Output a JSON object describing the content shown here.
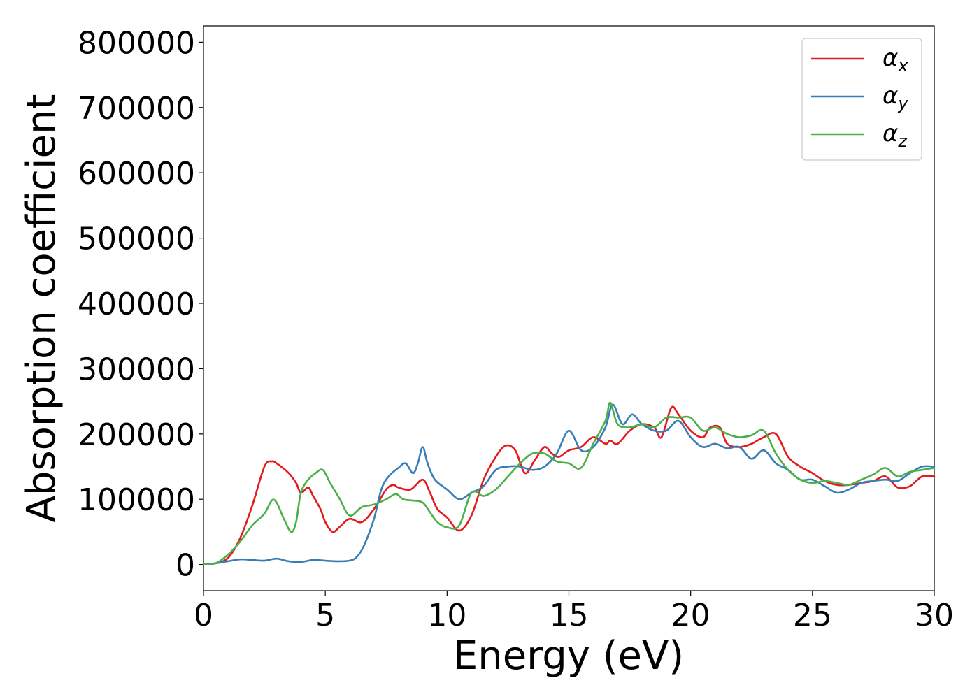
{
  "chart_data": {
    "type": "line",
    "title": "",
    "xlabel": "Energy (eV)",
    "ylabel": "Absorption coefficient",
    "xlim": [
      0,
      30
    ],
    "ylim": [
      -40000,
      825000
    ],
    "xticks": [
      0,
      5,
      10,
      15,
      20,
      25,
      30
    ],
    "xtick_labels": [
      "0",
      "5",
      "10",
      "15",
      "20",
      "25",
      "30"
    ],
    "yticks": [
      0,
      100000,
      200000,
      300000,
      400000,
      500000,
      600000,
      700000,
      800000
    ],
    "ytick_labels": [
      "0",
      "100000",
      "200000",
      "300000",
      "400000",
      "500000",
      "600000",
      "700000",
      "800000"
    ],
    "grid": false,
    "legend_position": "top-right",
    "series": [
      {
        "name": "α_x",
        "legend_base": "α",
        "legend_sub": "x",
        "color": "#e41a1c",
        "x": [
          0,
          0.5,
          1.0,
          1.5,
          2.0,
          2.5,
          2.8,
          3.0,
          3.5,
          3.8,
          4.0,
          4.3,
          4.5,
          4.8,
          5.0,
          5.3,
          5.6,
          6.0,
          6.5,
          7.0,
          7.5,
          7.8,
          8.0,
          8.5,
          9.0,
          9.3,
          9.6,
          10.0,
          10.5,
          11.0,
          11.5,
          12.0,
          12.4,
          12.8,
          13.2,
          13.6,
          14.0,
          14.3,
          14.6,
          15.0,
          15.5,
          16.0,
          16.5,
          16.7,
          17.0,
          17.5,
          18.0,
          18.5,
          18.8,
          19.2,
          19.5,
          20.0,
          20.5,
          20.8,
          21.2,
          21.5,
          22.0,
          22.5,
          23.0,
          23.5,
          24.0,
          24.5,
          25.0,
          25.5,
          26.0,
          26.5,
          27.0,
          27.5,
          28.0,
          28.5,
          29.0,
          29.5,
          30.0
        ],
        "y": [
          0,
          2000,
          10000,
          40000,
          90000,
          150000,
          158000,
          155000,
          140000,
          125000,
          110000,
          118000,
          105000,
          85000,
          65000,
          50000,
          58000,
          70000,
          65000,
          85000,
          115000,
          122000,
          118000,
          115000,
          130000,
          110000,
          85000,
          72000,
          52000,
          75000,
          130000,
          165000,
          182000,
          175000,
          140000,
          160000,
          180000,
          170000,
          165000,
          175000,
          180000,
          195000,
          185000,
          190000,
          185000,
          205000,
          215000,
          210000,
          195000,
          240000,
          230000,
          205000,
          195000,
          210000,
          210000,
          185000,
          180000,
          185000,
          195000,
          200000,
          165000,
          150000,
          140000,
          128000,
          122000,
          122000,
          125000,
          128000,
          135000,
          118000,
          120000,
          135000,
          135000
        ]
      },
      {
        "name": "α_y",
        "legend_base": "α",
        "legend_sub": "y",
        "color": "#377eb8",
        "x": [
          0,
          0.5,
          1.0,
          1.5,
          2.0,
          2.5,
          3.0,
          3.5,
          4.0,
          4.5,
          5.0,
          5.5,
          6.0,
          6.3,
          6.6,
          7.0,
          7.3,
          7.6,
          8.0,
          8.3,
          8.6,
          8.8,
          9.0,
          9.2,
          9.5,
          10.0,
          10.5,
          11.0,
          11.5,
          12.0,
          12.5,
          13.0,
          13.5,
          14.0,
          14.5,
          15.0,
          15.5,
          16.0,
          16.5,
          16.8,
          17.2,
          17.6,
          18.0,
          18.5,
          19.0,
          19.5,
          20.0,
          20.5,
          21.0,
          21.5,
          22.0,
          22.5,
          23.0,
          23.5,
          24.0,
          24.5,
          25.0,
          25.5,
          26.0,
          26.5,
          27.0,
          27.5,
          28.0,
          28.5,
          29.0,
          29.5,
          30.0
        ],
        "y": [
          0,
          2000,
          5000,
          8000,
          7000,
          6000,
          9000,
          5000,
          4000,
          7000,
          6000,
          5000,
          6000,
          12000,
          30000,
          70000,
          115000,
          135000,
          148000,
          155000,
          140000,
          155000,
          180000,
          155000,
          130000,
          115000,
          100000,
          110000,
          120000,
          145000,
          150000,
          150000,
          145000,
          150000,
          170000,
          205000,
          175000,
          180000,
          210000,
          245000,
          215000,
          230000,
          215000,
          205000,
          205000,
          220000,
          195000,
          180000,
          185000,
          178000,
          180000,
          162000,
          175000,
          155000,
          145000,
          130000,
          130000,
          120000,
          110000,
          115000,
          125000,
          128000,
          130000,
          128000,
          140000,
          150000,
          150000
        ]
      },
      {
        "name": "α_z",
        "legend_base": "α",
        "legend_sub": "z",
        "color": "#4daf4a",
        "x": [
          0,
          0.5,
          1.0,
          1.5,
          2.0,
          2.5,
          2.8,
          3.0,
          3.3,
          3.6,
          3.8,
          4.0,
          4.3,
          4.6,
          4.9,
          5.2,
          5.6,
          6.0,
          6.5,
          7.0,
          7.5,
          7.9,
          8.2,
          8.6,
          9.0,
          9.3,
          9.6,
          10.0,
          10.5,
          11.0,
          11.5,
          12.0,
          12.5,
          13.0,
          13.5,
          14.0,
          14.5,
          15.0,
          15.5,
          16.0,
          16.5,
          16.7,
          17.0,
          17.5,
          18.0,
          18.5,
          19.0,
          19.5,
          20.0,
          20.5,
          21.0,
          21.5,
          22.0,
          22.5,
          23.0,
          23.5,
          24.0,
          24.5,
          25.0,
          25.5,
          26.0,
          26.5,
          27.0,
          27.5,
          28.0,
          28.5,
          29.0,
          29.5,
          30.0
        ],
        "y": [
          0,
          2000,
          15000,
          35000,
          60000,
          78000,
          98000,
          95000,
          70000,
          50000,
          65000,
          110000,
          130000,
          140000,
          145000,
          125000,
          100000,
          75000,
          88000,
          92000,
          100000,
          108000,
          100000,
          98000,
          95000,
          80000,
          65000,
          57000,
          60000,
          110000,
          105000,
          115000,
          135000,
          155000,
          170000,
          170000,
          158000,
          155000,
          148000,
          185000,
          220000,
          248000,
          215000,
          210000,
          215000,
          210000,
          225000,
          225000,
          225000,
          205000,
          210000,
          200000,
          195000,
          198000,
          205000,
          170000,
          145000,
          130000,
          125000,
          128000,
          125000,
          122000,
          130000,
          138000,
          148000,
          135000,
          142000,
          145000,
          148000
        ]
      }
    ]
  }
}
